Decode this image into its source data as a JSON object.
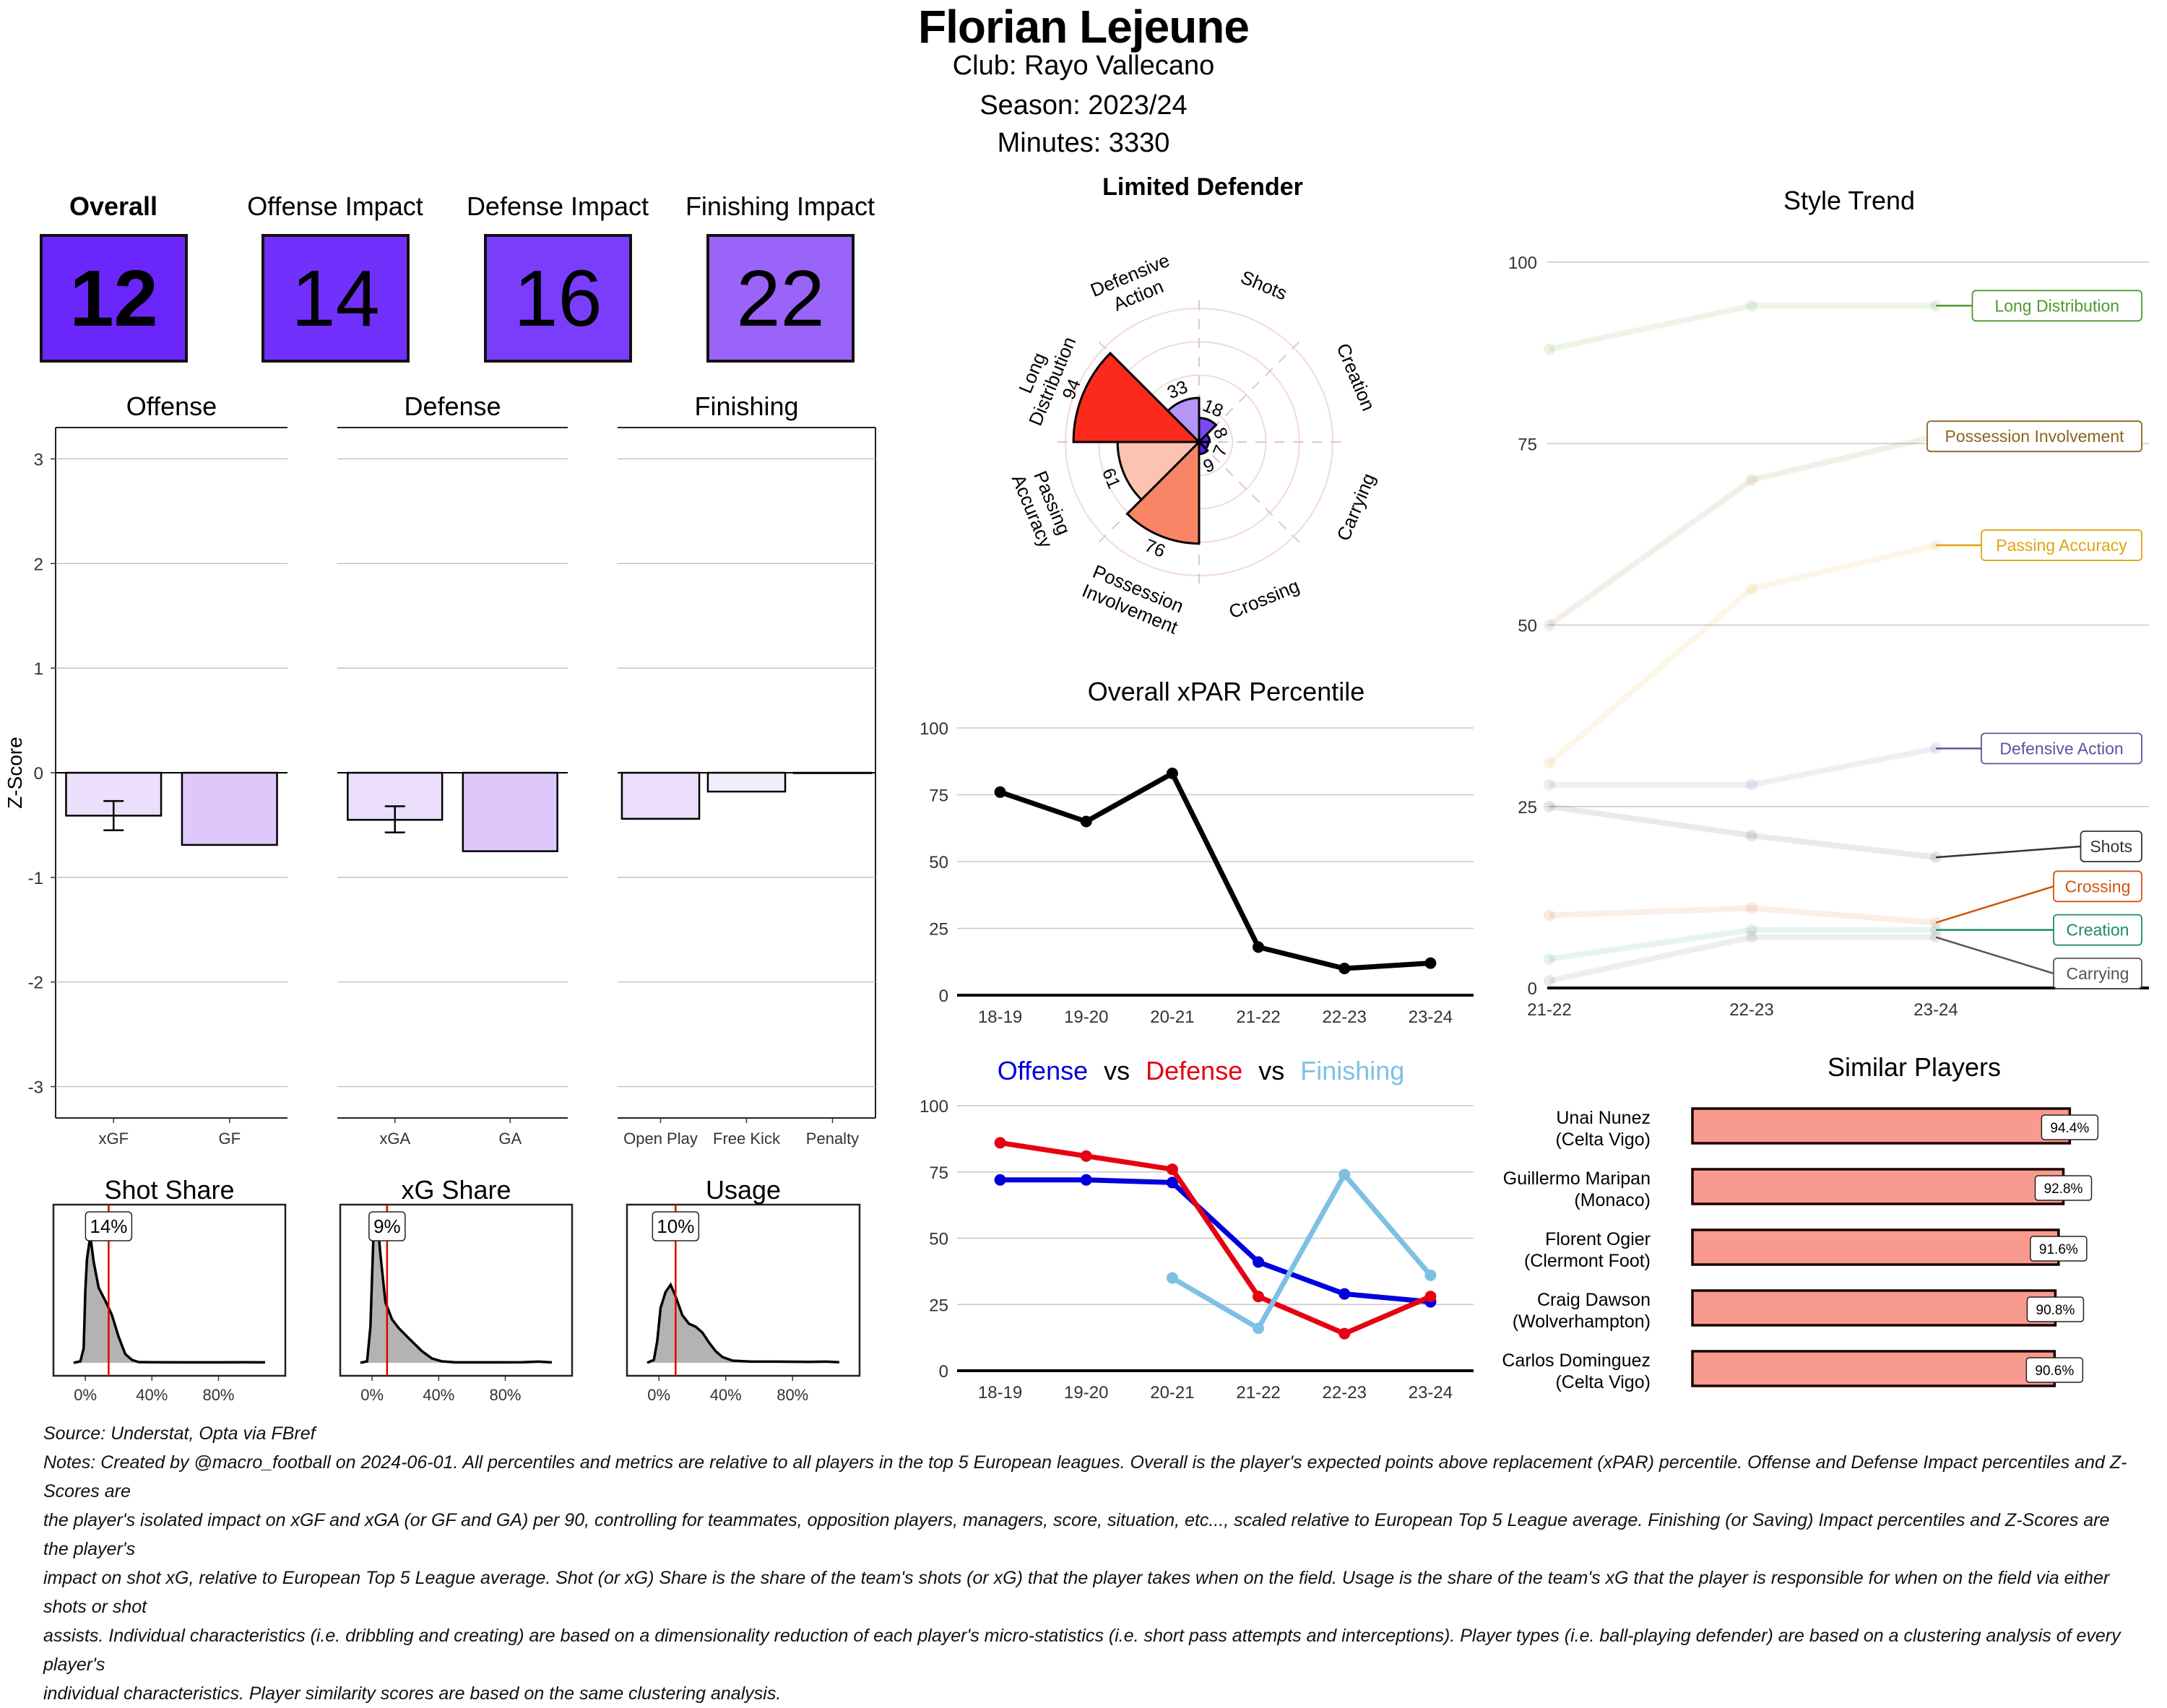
{
  "header": {
    "player_name": "Florian Lejeune",
    "club_line": "Club:  Rayo Vallecano",
    "season_line": "Season:  2023/24",
    "minutes_line": "Minutes:  3330"
  },
  "tiles": [
    {
      "label": "Overall",
      "value": "12",
      "color": "#6a26fb",
      "bold": true
    },
    {
      "label": "Offense Impact",
      "value": "14",
      "color": "#7230fc",
      "bold": false
    },
    {
      "label": "Defense Impact",
      "value": "16",
      "color": "#7b3dfc",
      "bold": false
    },
    {
      "label": "Finishing Impact",
      "value": "22",
      "color": "#9b64f8",
      "bold": false
    }
  ],
  "chart_data": [
    {
      "id": "zscore_bars",
      "type": "bar",
      "ylabel": "Z-Score",
      "ylim": [
        -3.3,
        3.3
      ],
      "yticks": [
        3,
        2,
        1,
        0,
        -1,
        -2,
        -3
      ],
      "grid": true,
      "panels": [
        {
          "title": "Offense",
          "categories": [
            "xGF",
            "GF"
          ],
          "values": [
            -0.41,
            -0.69
          ],
          "colors": [
            "#ebdffc",
            "#dec7fa"
          ],
          "error": [
            [
              -0.27,
              -0.55
            ],
            null
          ]
        },
        {
          "title": "Defense",
          "categories": [
            "xGA",
            "GA"
          ],
          "values": [
            -0.45,
            -0.75
          ],
          "colors": [
            "#ebdffc",
            "#dec7fa"
          ],
          "error": [
            [
              -0.32,
              -0.57
            ],
            null
          ]
        },
        {
          "title": "Finishing",
          "categories": [
            "Open Play",
            "Free Kick",
            "Penalty"
          ],
          "values": [
            -0.44,
            -0.18,
            0
          ],
          "colors": [
            "#ebdffc",
            "#f1eefb",
            "#f1eefb"
          ],
          "error": [
            null,
            null,
            null
          ]
        }
      ]
    },
    {
      "id": "share_densities",
      "type": "area",
      "xticks": [
        "0%",
        "40%",
        "80%"
      ],
      "panels": [
        {
          "title": "Shot Share",
          "marker": 14,
          "marker_label": "14%",
          "shape": "shot"
        },
        {
          "title": "xG Share",
          "marker": 9,
          "marker_label": "9%",
          "shape": "xg"
        },
        {
          "title": "Usage",
          "marker": 10,
          "marker_label": "10%",
          "shape": "usage"
        }
      ]
    },
    {
      "id": "style_radar",
      "type": "bar",
      "subtype": "polar",
      "title": "Limited Defender",
      "categories": [
        "Shots",
        "Creation",
        "Carrying",
        "Crossing",
        "Possession Involvement",
        "Passing Accuracy",
        "Long Distribution",
        "Defensive Action"
      ],
      "label_lines": [
        [
          "Shots"
        ],
        [
          "Creation"
        ],
        [
          "Carrying"
        ],
        [
          "Crossing"
        ],
        [
          "Possession",
          "Involvement"
        ],
        [
          "Passing",
          "Accuracy"
        ],
        [
          "Long",
          "Distribution"
        ],
        [
          "Defensive",
          "Action"
        ]
      ],
      "values": [
        18,
        8,
        7,
        9,
        76,
        61,
        94,
        33
      ],
      "colors": [
        "#7a48f5",
        "#5a1df0",
        "#5a1df0",
        "#5a1df0",
        "#fa8466",
        "#fcc4b0",
        "#fb2a1c",
        "#b596f8"
      ],
      "rlim": [
        0,
        100
      ]
    },
    {
      "id": "xpar_line",
      "type": "line",
      "title": "Overall xPAR Percentile",
      "x": [
        "18-19",
        "19-20",
        "20-21",
        "21-22",
        "22-23",
        "23-24"
      ],
      "yticks": [
        100,
        75,
        50,
        25,
        0
      ],
      "ylim": [
        0,
        100
      ],
      "series": [
        {
          "name": "Overall xPAR Percentile",
          "values": [
            76,
            65,
            83,
            18,
            10,
            12
          ],
          "color": "#000000"
        }
      ]
    },
    {
      "id": "odf_line",
      "type": "line",
      "title_parts": [
        {
          "text": "Offense",
          "color": "#0000dd"
        },
        {
          "text": "vs",
          "color": "#000000"
        },
        {
          "text": "Defense",
          "color": "#e60012"
        },
        {
          "text": "vs",
          "color": "#000000"
        },
        {
          "text": "Finishing",
          "color": "#7ec0e4"
        }
      ],
      "x": [
        "18-19",
        "19-20",
        "20-21",
        "21-22",
        "22-23",
        "23-24"
      ],
      "yticks": [
        100,
        75,
        50,
        25,
        0
      ],
      "ylim": [
        0,
        100
      ],
      "series": [
        {
          "name": "Offense",
          "values": [
            72,
            72,
            71,
            41,
            29,
            26
          ],
          "color": "#0000dd"
        },
        {
          "name": "Defense",
          "values": [
            86,
            81,
            76,
            28,
            14,
            28
          ],
          "color": "#e60012"
        },
        {
          "name": "Finishing",
          "values": [
            null,
            null,
            35,
            16,
            74,
            36
          ],
          "color": "#7ec0e4"
        }
      ]
    },
    {
      "id": "style_trend",
      "type": "line",
      "title": "Style Trend",
      "x": [
        "21-22",
        "22-23",
        "23-24"
      ],
      "yticks": [
        100,
        75,
        50,
        25,
        0
      ],
      "ylim": [
        0,
        100
      ],
      "series": [
        {
          "name": "Long Distribution",
          "values": [
            88,
            94,
            94
          ],
          "color": "#4e9a2a",
          "label_at": 94
        },
        {
          "name": "Possession Involvement",
          "values": [
            50,
            70,
            76
          ],
          "color": "#8c6420",
          "label_at": 76
        },
        {
          "name": "Passing Accuracy",
          "values": [
            31,
            55,
            61
          ],
          "color": "#e0a412",
          "label_at": 61
        },
        {
          "name": "Defensive Action",
          "values": [
            28,
            28,
            33
          ],
          "color": "#5b54a0",
          "label_at": 33
        },
        {
          "name": "Shots",
          "values": [
            25,
            21,
            18
          ],
          "color": "#333333",
          "label_at": 19.5
        },
        {
          "name": "Crossing",
          "values": [
            10,
            11,
            9
          ],
          "color": "#d2540e",
          "label_at": 14
        },
        {
          "name": "Creation",
          "values": [
            4,
            8,
            8
          ],
          "color": "#1e8a68",
          "label_at": 8
        },
        {
          "name": "Carrying",
          "values": [
            1,
            7,
            7
          ],
          "color": "#555555",
          "label_at": 2
        }
      ]
    },
    {
      "id": "similar_players",
      "type": "bar",
      "orientation": "horizontal",
      "title": "Similar Players",
      "categories": [
        [
          "Unai Nunez",
          "(Celta Vigo)"
        ],
        [
          "Guillermo Maripan",
          "(Monaco)"
        ],
        [
          "Florent Ogier",
          "(Clermont Foot)"
        ],
        [
          "Craig Dawson",
          "(Wolverhampton)"
        ],
        [
          "Carlos Dominguez",
          "(Celta Vigo)"
        ]
      ],
      "values": [
        94.4,
        92.8,
        91.6,
        90.8,
        90.6
      ],
      "value_labels": [
        "94.4%",
        "92.8%",
        "91.6%",
        "90.8%",
        "90.6%"
      ],
      "color": "#f99a8e"
    }
  ],
  "footer": {
    "source": "Source: Understat, Opta via FBref",
    "notes": [
      "Notes: Created by @macro_football on 2024-06-01. All percentiles and metrics are relative to all players in the top 5 European leagues. Overall is the player's expected points above replacement (xPAR) percentile. Offense and Defense Impact percentiles and Z-Scores are",
      "the player's isolated impact on xGF and xGA (or GF and GA) per 90, controlling for teammates, opposition players, managers, score, situation, etc..., scaled relative to European Top 5 League average. Finishing (or Saving) Impact percentiles and Z-Scores are the player's",
      "impact on shot xG, relative to European Top 5 League average. Shot (or xG) Share is the share of the team's shots (or xG) that the player takes when on the field. Usage is the share of the team's xG that the player is responsible for when on the field via either shots or shot",
      "assists. Individual characteristics (i.e. dribbling and creating) are based on a dimensionality reduction of each player's micro-statistics (i.e. short pass attempts and interceptions). Player types (i.e. ball-playing defender) are based on a clustering analysis of every player's",
      "individual characteristics. Player similarity scores are based on the same clustering analysis."
    ]
  }
}
